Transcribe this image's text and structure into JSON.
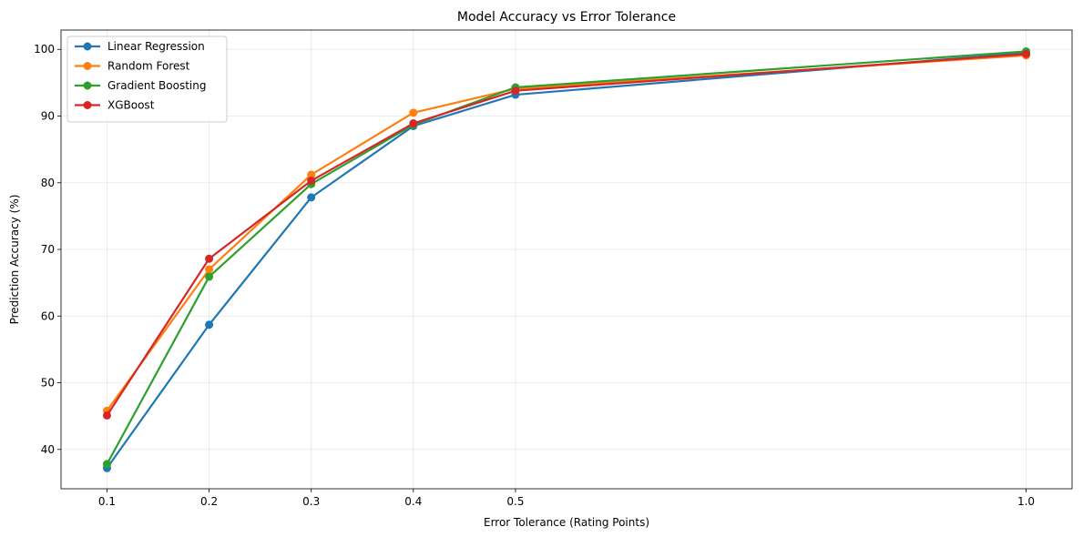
{
  "chart_data": {
    "type": "line",
    "title": "Model Accuracy vs Error Tolerance",
    "xlabel": "Error Tolerance (Rating Points)",
    "ylabel": "Prediction Accuracy (%)",
    "x": [
      0.1,
      0.2,
      0.3,
      0.4,
      0.5,
      1.0
    ],
    "x_tick_labels": [
      "0.1",
      "0.2",
      "0.3",
      "0.4",
      "0.5",
      "1.0"
    ],
    "y_ticks": [
      40,
      50,
      60,
      70,
      80,
      90,
      100
    ],
    "xlim": [
      0.055,
      1.045
    ],
    "ylim": [
      34.1,
      102.9
    ],
    "grid": true,
    "legend_position": "top-left",
    "series": [
      {
        "name": "Linear Regression",
        "color": "#1f77b4",
        "values": [
          37.2,
          58.7,
          77.8,
          88.5,
          93.2,
          99.5
        ]
      },
      {
        "name": "Random Forest",
        "color": "#ff7f0e",
        "values": [
          45.8,
          67.0,
          81.2,
          90.5,
          94.1,
          99.1
        ]
      },
      {
        "name": "Gradient Boosting",
        "color": "#2ca02c",
        "values": [
          37.8,
          65.9,
          79.8,
          88.7,
          94.3,
          99.7
        ]
      },
      {
        "name": "XGBoost",
        "color": "#d62728",
        "values": [
          45.1,
          68.6,
          80.3,
          88.9,
          93.8,
          99.3
        ]
      }
    ]
  }
}
